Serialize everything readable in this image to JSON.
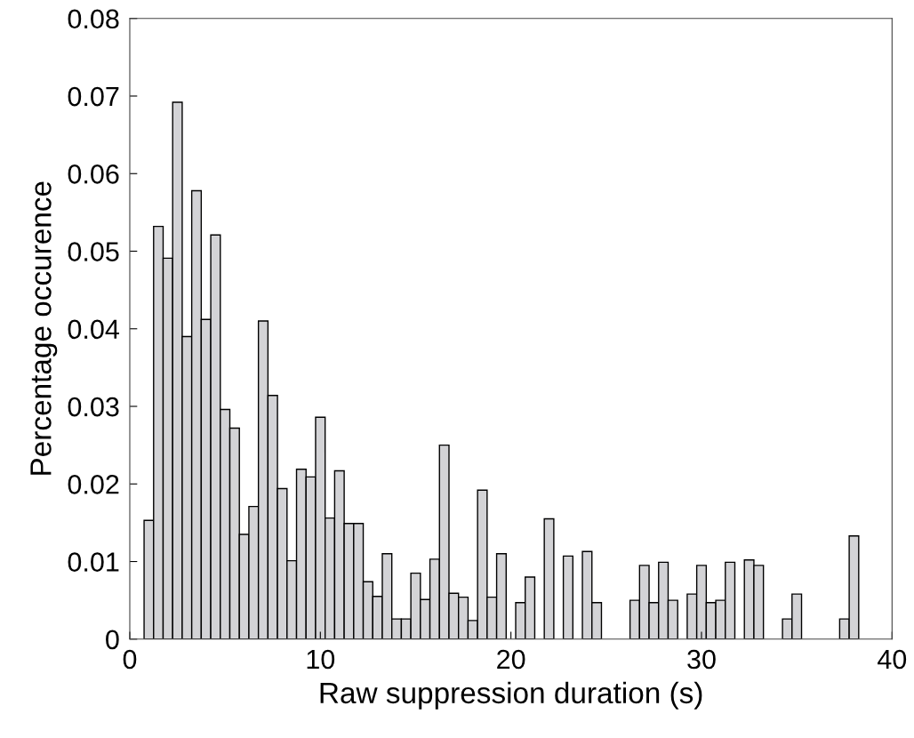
{
  "chart_data": {
    "type": "histogram",
    "xlabel": "Raw suppression duration (s)",
    "ylabel": "Percentage occurence",
    "bins": [
      0.75,
      1.25,
      1.75,
      2.25,
      2.75,
      3.25,
      3.75,
      4.25,
      4.75,
      5.25,
      5.75,
      6.25,
      6.75,
      7.25,
      7.75,
      8.25,
      8.75,
      9.25,
      9.75,
      10.25,
      10.75,
      11.25,
      11.75,
      12.25,
      12.75,
      13.25,
      13.75,
      14.25,
      14.75,
      15.25,
      15.75,
      16.25,
      16.75,
      17.25,
      17.75,
      18.25,
      18.75,
      19.25,
      19.75,
      20.25,
      20.75,
      21.25,
      21.75,
      22.25,
      22.75,
      23.25,
      23.75,
      24.25,
      24.75,
      25.25,
      25.75,
      26.25,
      26.75,
      27.25,
      27.75,
      28.25,
      28.75,
      29.25,
      29.75,
      30.25,
      30.75,
      31.25,
      31.75,
      32.25,
      32.75,
      33.25,
      33.75,
      34.25,
      34.75,
      35.25,
      35.75,
      36.25,
      36.75,
      37.25,
      37.75,
      38.25
    ],
    "values": [
      0.0153,
      0.0532,
      0.0491,
      0.0692,
      0.039,
      0.0578,
      0.0412,
      0.0521,
      0.0296,
      0.0272,
      0.0135,
      0.0171,
      0.041,
      0.0314,
      0.0194,
      0.0101,
      0.0219,
      0.0209,
      0.0286,
      0.0156,
      0.0217,
      0.0149,
      0.0149,
      0.0074,
      0.0055,
      0.011,
      0.0026,
      0.0026,
      0.0085,
      0.0051,
      0.0103,
      0.025,
      0.0059,
      0.0054,
      0.0024,
      0.0192,
      0.0054,
      0.011,
      0,
      0.0047,
      0.008,
      0,
      0.0155,
      0,
      0.0107,
      0,
      0.0113,
      0.0047,
      0,
      0,
      0,
      0.005,
      0.0095,
      0.0047,
      0.0099,
      0.005,
      0,
      0.0058,
      0.0095,
      0.0047,
      0.005,
      0.0099,
      0,
      0.0102,
      0.0095,
      0,
      0,
      0.0026,
      0.0058,
      0,
      0,
      0,
      0,
      0.0026,
      0.0133
    ],
    "color": "#d3d3d6",
    "xlim": [
      0,
      40
    ],
    "xticks": [
      0,
      10,
      20,
      30,
      40
    ],
    "ylim": [
      0,
      0.08
    ],
    "yticks": [
      0,
      0.01,
      0.02,
      0.03,
      0.04,
      0.05,
      0.06,
      0.07,
      0.08
    ],
    "grid": false
  }
}
